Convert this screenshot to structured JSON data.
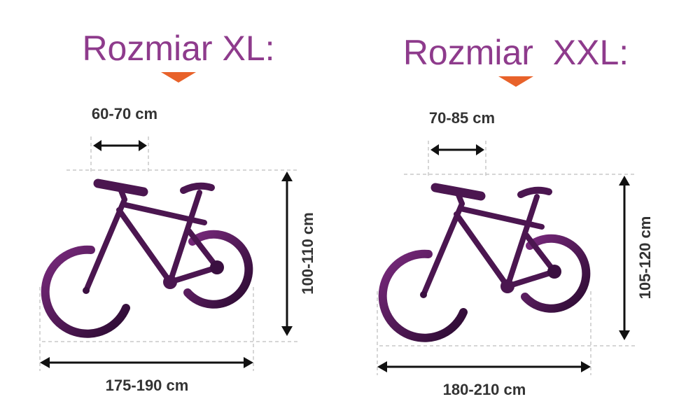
{
  "panels": [
    {
      "title": "Rozmiar XL:",
      "width": "60-70 cm",
      "height": "100-110 cm",
      "length": "175-190 cm"
    },
    {
      "title": "Rozmiar  XXL:",
      "width": "70-85 cm",
      "height": "105-120 cm",
      "length": "180-210 cm"
    }
  ]
}
